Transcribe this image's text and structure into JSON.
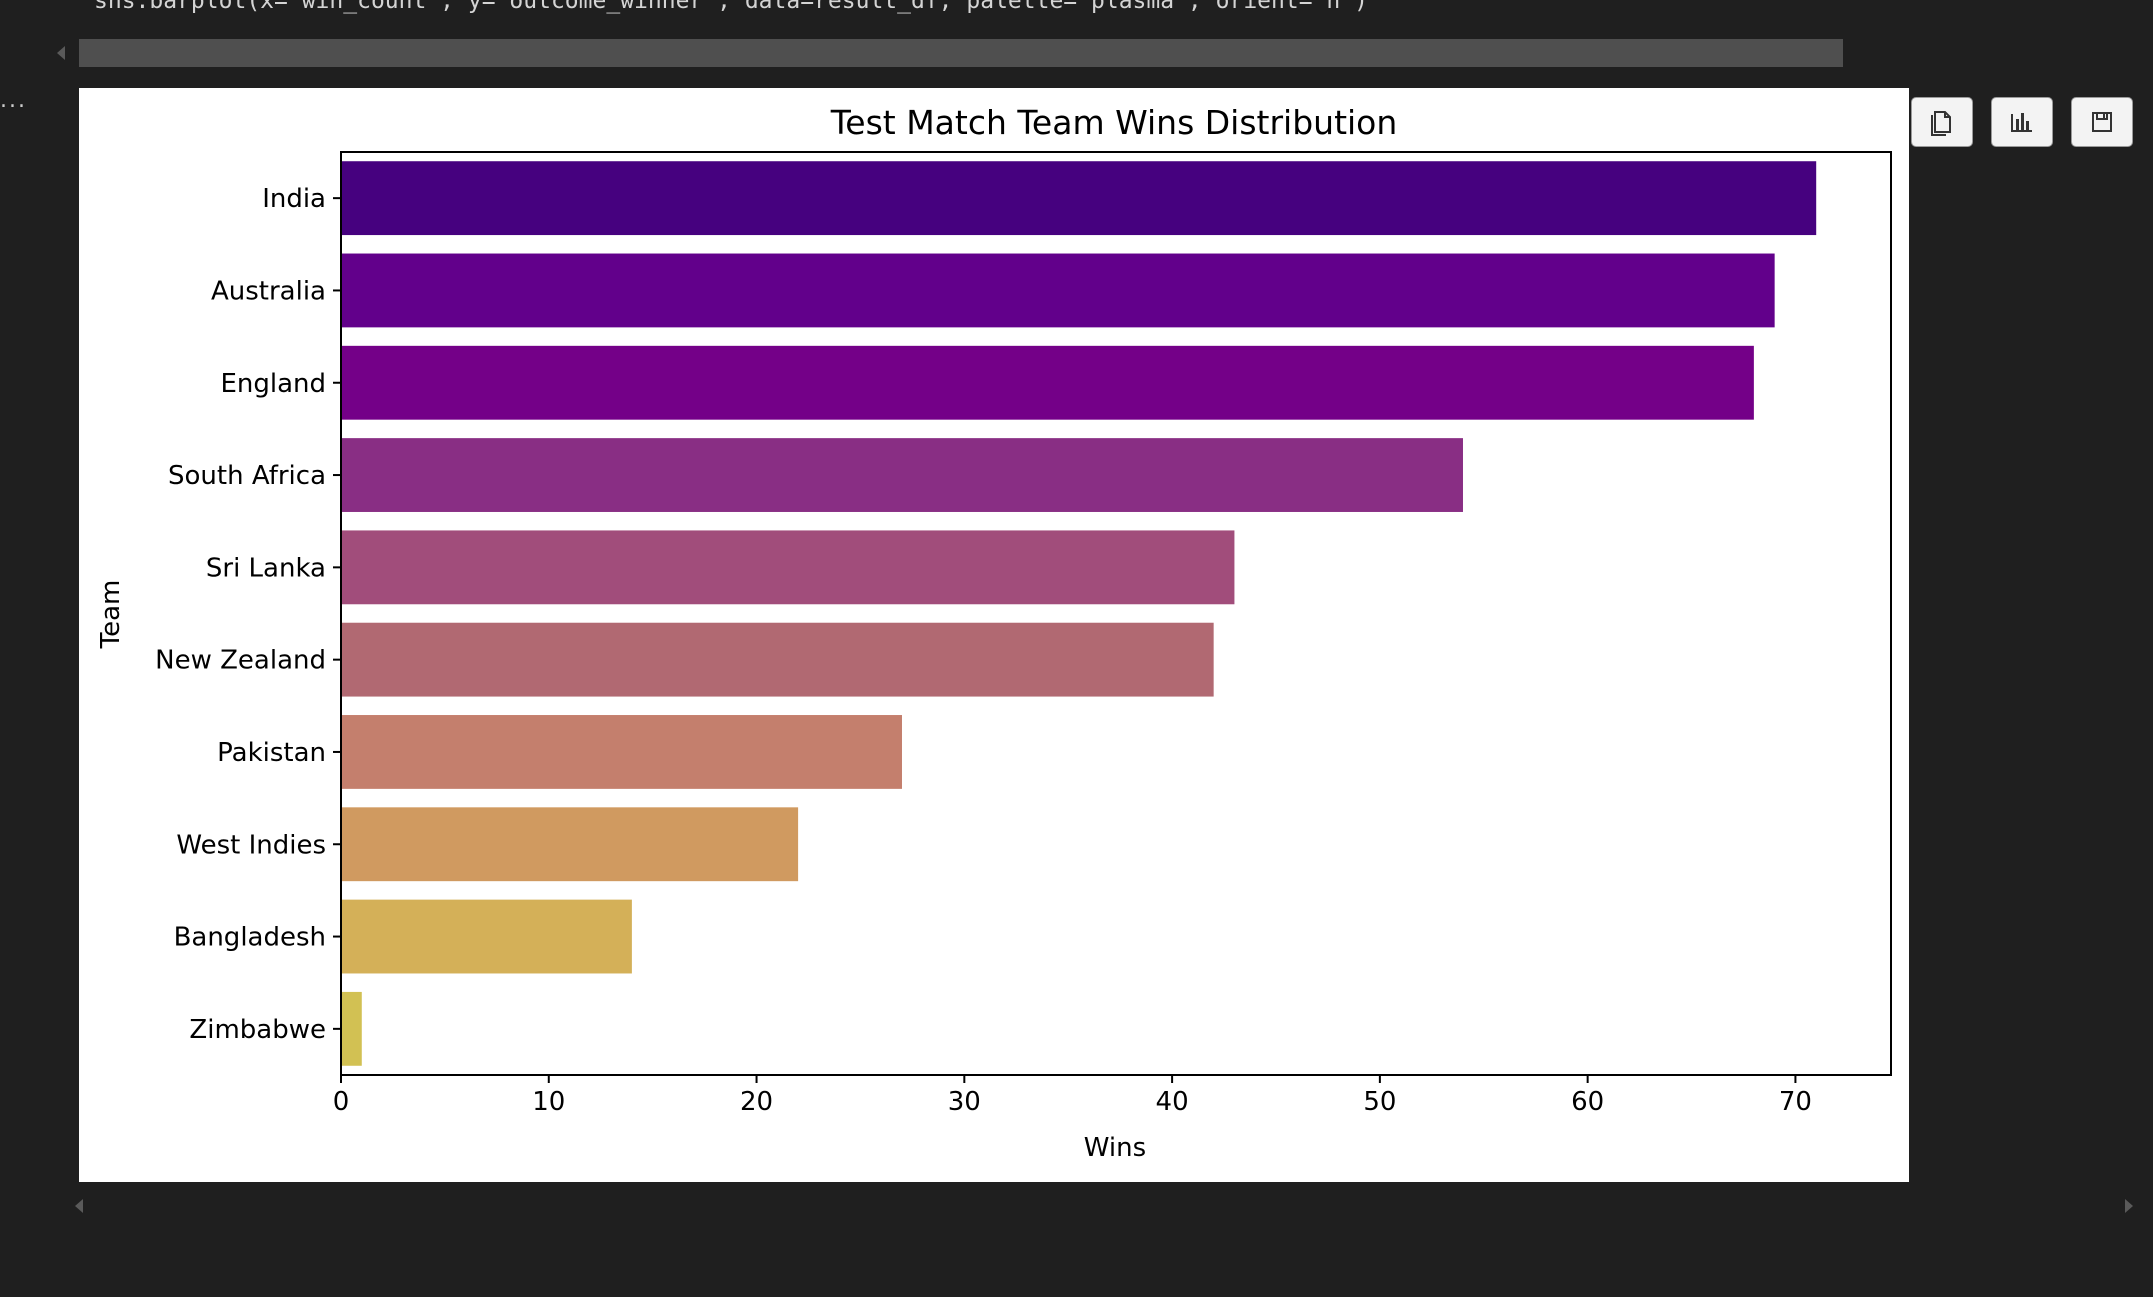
{
  "code": {
    "line": "sns.barplot(x='win_count', y='outcome_winner', data=result_df, palette='plasma', orient='h')"
  },
  "output": {
    "gutter_text": "..."
  },
  "toolbar": {
    "copy_icon": "copy-icon",
    "chart_icon": "bar-chart-icon",
    "save_icon": "save-icon"
  },
  "chart_data": {
    "type": "bar",
    "orientation": "horizontal",
    "title": "Test Match Team Wins Distribution",
    "xlabel": "Wins",
    "ylabel": "Team",
    "categories": [
      "India",
      "Australia",
      "England",
      "South Africa",
      "Sri Lanka",
      "New Zealand",
      "Pakistan",
      "West Indies",
      "Bangladesh",
      "Zimbabwe"
    ],
    "values": [
      71,
      69,
      68,
      54,
      43,
      42,
      27,
      22,
      14,
      1
    ],
    "colors": [
      "#46017f",
      "#62008b",
      "#740088",
      "#892e84",
      "#a14d7b",
      "#b16972",
      "#c47f6d",
      "#d09a60",
      "#d4b058",
      "#d2c153"
    ],
    "xlim": [
      0,
      74.6
    ],
    "xticks": [
      0,
      10,
      20,
      30,
      40,
      50,
      60,
      70
    ],
    "grid": false,
    "legend": "none"
  }
}
